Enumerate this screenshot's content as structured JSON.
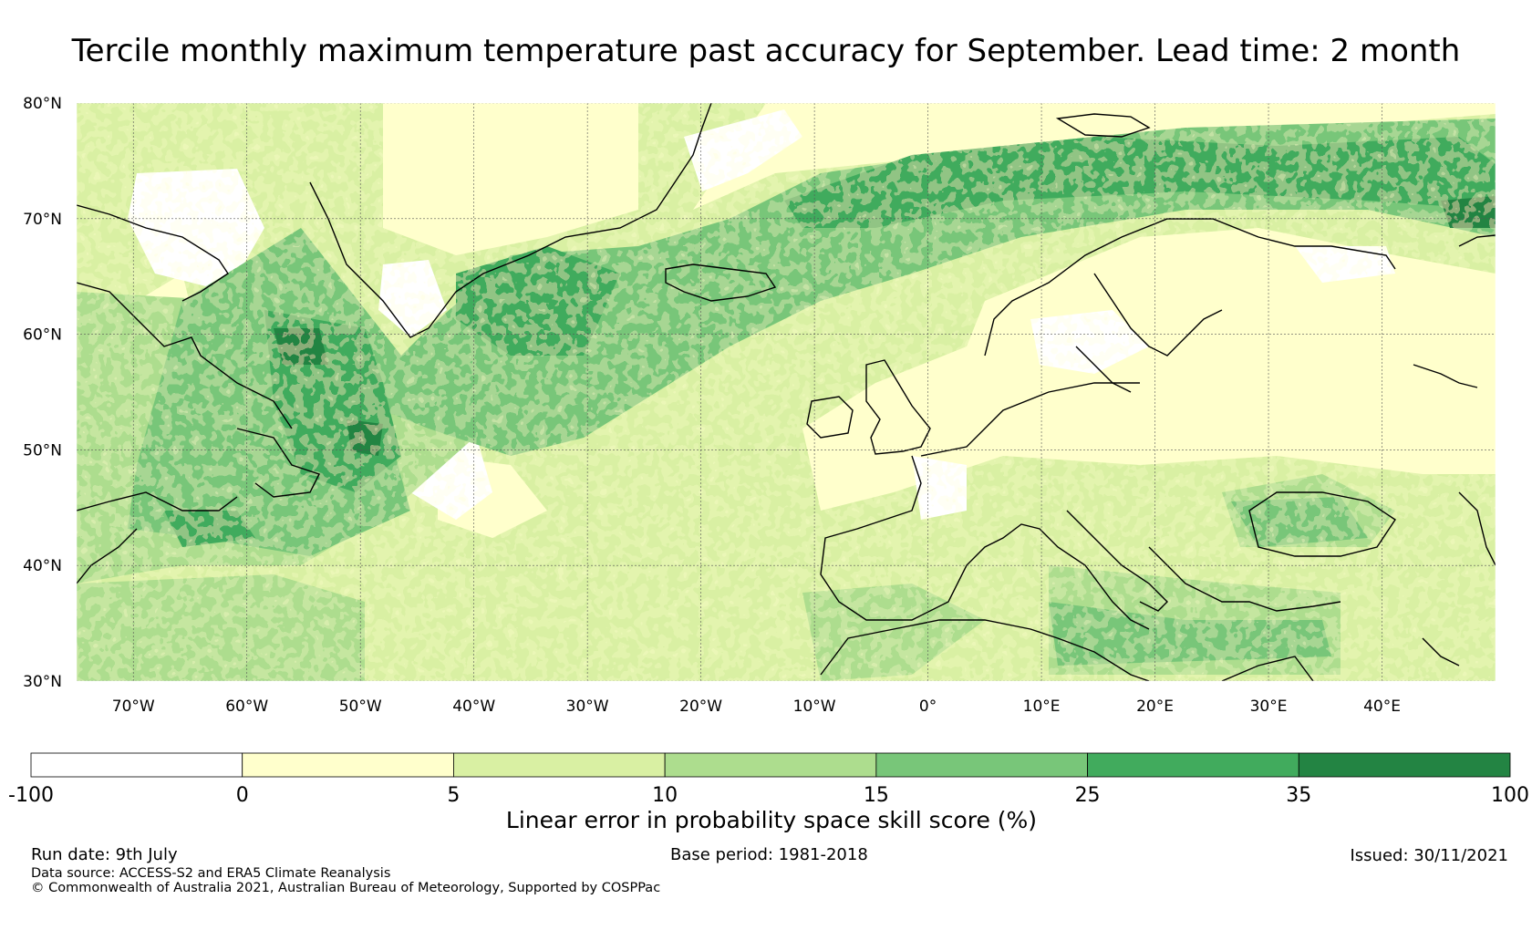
{
  "title": "Tercile monthly maximum temperature past accuracy for September. Lead time: 2 month",
  "map": {
    "lat_range": [
      30,
      80
    ],
    "lon_range": [
      -75,
      50
    ],
    "lat_ticks": [
      "30°N",
      "40°N",
      "50°N",
      "60°N",
      "70°N",
      "80°N"
    ],
    "lat_values": [
      30,
      40,
      50,
      60,
      70,
      80
    ],
    "lon_ticks": [
      "70°W",
      "60°W",
      "50°W",
      "40°W",
      "30°W",
      "20°W",
      "10°W",
      "0°",
      "10°E",
      "20°E",
      "30°E",
      "40°E"
    ],
    "lon_values": [
      -70,
      -60,
      -50,
      -40,
      -30,
      -20,
      -10,
      0,
      10,
      20,
      30,
      40
    ],
    "gridlines": true,
    "coastlines": true
  },
  "colorbar": {
    "label": "Linear error in probability space skill score (%)",
    "boundaries": [
      "-100",
      "0",
      "5",
      "10",
      "15",
      "25",
      "35",
      "100"
    ],
    "colors": [
      "#ffffff",
      "#ffffcc",
      "#d9f0a3",
      "#addd8e",
      "#78c679",
      "#41ab5d",
      "#238443"
    ]
  },
  "footer": {
    "run_date": "Run date: 9th July",
    "base_period": "Base period: 1981-2018",
    "issued": "Issued: 30/11/2021",
    "data_source": "Data source: ACCESS-S2 and ERA5 Climate Reanalysis",
    "copyright": "© Commonwealth of Australia 2021, Australian Bureau of Meteorology, Supported by COSPPac"
  }
}
